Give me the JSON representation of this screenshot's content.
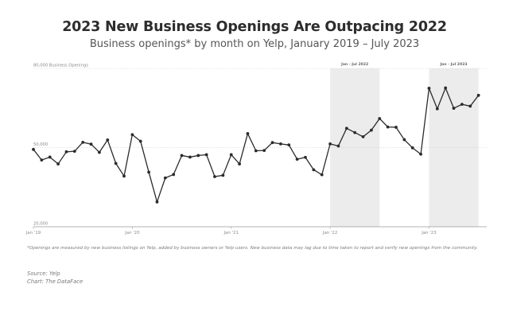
{
  "chart_data": {
    "type": "line",
    "title": "2023 New Business Openings Are Outpacing 2022",
    "subtitle": "Business openings* by month on Yelp, January 2019 – July 2023",
    "ylim": [
      20000,
      80000
    ],
    "y_ticks": [
      {
        "value": 80000,
        "label": "80,000 Business Openings"
      },
      {
        "value": 50000,
        "label": "50,000"
      },
      {
        "value": 20000,
        "label": "20,000"
      }
    ],
    "x_ticks": [
      {
        "x": "2019-01",
        "label": "Jan '19"
      },
      {
        "x": "2020-01",
        "label": "Jan '20"
      },
      {
        "x": "2021-01",
        "label": "Jan '21"
      },
      {
        "x": "2022-01",
        "label": "Jan '22"
      },
      {
        "x": "2023-01",
        "label": "Jan '23"
      }
    ],
    "shaded_ranges": [
      {
        "start": "2022-01",
        "end": "2022-07",
        "label": "Jan - Jul 2022"
      },
      {
        "start": "2023-01",
        "end": "2023-07",
        "label": "Jan - Jul 2023"
      }
    ],
    "grid": "horizontal",
    "series": [
      {
        "color": "#2b2b2b",
        "x": [
          "2019-01",
          "2019-02",
          "2019-03",
          "2019-04",
          "2019-05",
          "2019-06",
          "2019-07",
          "2019-08",
          "2019-09",
          "2019-10",
          "2019-11",
          "2019-12",
          "2020-01",
          "2020-02",
          "2020-03",
          "2020-04",
          "2020-05",
          "2020-06",
          "2020-07",
          "2020-08",
          "2020-09",
          "2020-10",
          "2020-11",
          "2020-12",
          "2021-01",
          "2021-02",
          "2021-03",
          "2021-04",
          "2021-05",
          "2021-06",
          "2021-07",
          "2021-08",
          "2021-09",
          "2021-10",
          "2021-11",
          "2021-12",
          "2022-01",
          "2022-02",
          "2022-03",
          "2022-04",
          "2022-05",
          "2022-06",
          "2022-07",
          "2022-08",
          "2022-09",
          "2022-10",
          "2022-11",
          "2022-12",
          "2023-01",
          "2023-02",
          "2023-03",
          "2023-04",
          "2023-05",
          "2023-06",
          "2023-07"
        ],
        "values": [
          49300,
          45300,
          46400,
          43800,
          48400,
          48600,
          52000,
          51300,
          48200,
          52900,
          44000,
          39200,
          54900,
          52400,
          40700,
          29400,
          38500,
          39800,
          47000,
          46400,
          47000,
          47300,
          39000,
          39500,
          47300,
          43800,
          55300,
          48800,
          48900,
          51900,
          51400,
          51000,
          45600,
          46300,
          41600,
          39700,
          51400,
          50600,
          57300,
          55700,
          54100,
          56600,
          61000,
          57800,
          57700,
          53000,
          49900,
          47500,
          72500,
          64700,
          72600,
          64900,
          66400,
          65700,
          69800
        ]
      }
    ]
  },
  "footnote": "*Openings are measured by new business listings on Yelp, added by business owners or Yelp users. New business data may lag due to time taken to report and verify new openings from the community.",
  "source_line": "Source: Yelp",
  "credit_line": "Chart: The DataFace"
}
